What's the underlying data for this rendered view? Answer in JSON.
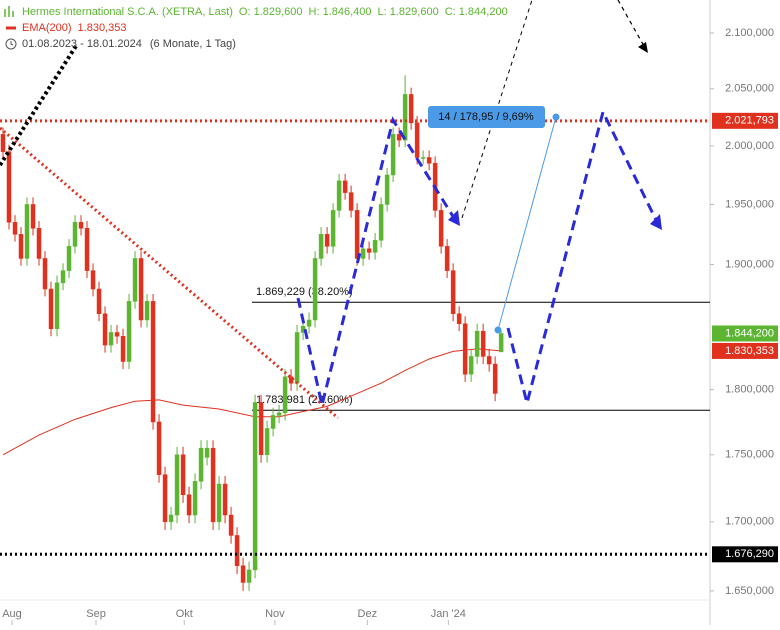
{
  "chart_data": {
    "type": "candlestick",
    "title": "Hermes International S.C.A. (XETRA, Last)",
    "quote": [
      "O: 1.829,600",
      "H: 1.846,400",
      "L: 1.829,600",
      "C: 1.844,200"
    ],
    "period": "01.08.2023 - 18.01.2024",
    "period_note": "(6 Monate, 1 Tag)",
    "log_scale": true,
    "ylim": [
      1643.5,
      2130.2
    ],
    "yticks": [
      {
        "value": 1650,
        "label": "1.650,000"
      },
      {
        "value": 1700,
        "label": "1.700,000"
      },
      {
        "value": 1750,
        "label": "1.750,000"
      },
      {
        "value": 1800,
        "label": "1.800,000"
      },
      {
        "value": 1900,
        "label": "1.900,000"
      },
      {
        "value": 1950,
        "label": "1.950,000"
      },
      {
        "value": 2000,
        "label": "2.000,000"
      },
      {
        "value": 2050,
        "label": "2.050,000"
      },
      {
        "value": 2100,
        "label": "2.100,000"
      }
    ],
    "xlim": [
      -0.5,
      117.8
    ],
    "xticks": [
      {
        "value": 1.5,
        "label": "Aug"
      },
      {
        "value": 15.5,
        "label": "Sep"
      },
      {
        "value": 30.2,
        "label": "Okt"
      },
      {
        "value": 45.3,
        "label": "Nov"
      },
      {
        "value": 60.7,
        "label": "Dez"
      },
      {
        "value": 74.2,
        "label": "Jan '24"
      }
    ],
    "up_color": "#5cb531",
    "down_color": "#e0301e",
    "open": [
      2010,
      1995,
      1935,
      1925,
      1905,
      1950,
      1930,
      1905,
      1880,
      1848,
      1885,
      1895,
      1915,
      1935,
      1930,
      1895,
      1880,
      1860,
      1835,
      1845,
      1842,
      1822,
      1870,
      1905,
      1855,
      1870,
      1775,
      1735,
      1700,
      1705,
      1750,
      1720,
      1705,
      1730,
      1748,
      1755,
      1700,
      1728,
      1705,
      1690,
      1668,
      1656,
      1665,
      1790,
      1750,
      1770,
      1780,
      1782,
      1810,
      1805,
      1845,
      1850,
      1855,
      1905,
      1925,
      1915,
      1945,
      1970,
      1960,
      1945,
      1905,
      1913,
      1910,
      1920,
      1950,
      1975,
      2010,
      2005,
      2045,
      2020,
      1990,
      1990,
      1985,
      1945,
      1915,
      1895,
      1860,
      1852,
      1812,
      1826,
      1846,
      1826,
      1820,
      1829.6
    ],
    "high": [
      2016,
      2001,
      1941,
      1931,
      1956,
      1956,
      1936,
      1911,
      1886,
      1891,
      1901,
      1921,
      1941,
      1941,
      1936,
      1901,
      1886,
      1866,
      1851,
      1851,
      1848,
      1876,
      1911,
      1911,
      1876,
      1876,
      1781,
      1741,
      1711,
      1756,
      1756,
      1726,
      1736,
      1761,
      1761,
      1761,
      1734,
      1734,
      1711,
      1696,
      1674,
      1671,
      1796,
      1796,
      1776,
      1786,
      1788,
      1816,
      1816,
      1851,
      1856,
      1861,
      1911,
      1931,
      1931,
      1951,
      1976,
      1976,
      1966,
      1951,
      1919,
      1919,
      1926,
      1956,
      1981,
      2016,
      2016,
      2062,
      2051,
      2026,
      1996,
      1996,
      1991,
      1951,
      1921,
      1901,
      1866,
      1858,
      1832,
      1852,
      1852,
      1832,
      1826,
      1846.4
    ],
    "low": [
      1989,
      1929,
      1919,
      1899,
      1899,
      1924,
      1899,
      1874,
      1842,
      1842,
      1879,
      1889,
      1909,
      1924,
      1889,
      1874,
      1854,
      1829,
      1829,
      1836,
      1816,
      1816,
      1864,
      1849,
      1849,
      1769,
      1729,
      1694,
      1694,
      1699,
      1714,
      1699,
      1699,
      1724,
      1742,
      1694,
      1694,
      1699,
      1684,
      1662,
      1650,
      1650,
      1659,
      1744,
      1744,
      1764,
      1774,
      1776,
      1799,
      1799,
      1839,
      1844,
      1849,
      1899,
      1909,
      1909,
      1939,
      1954,
      1939,
      1899,
      1899,
      1904,
      1904,
      1914,
      1944,
      1969,
      1999,
      1999,
      2014,
      1984,
      1984,
      1979,
      1939,
      1909,
      1889,
      1854,
      1846,
      1806,
      1806,
      1820,
      1820,
      1814,
      1791,
      1829.6
    ],
    "close": [
      1995,
      1935,
      1925,
      1905,
      1950,
      1930,
      1905,
      1880,
      1848,
      1885,
      1895,
      1915,
      1935,
      1930,
      1895,
      1880,
      1860,
      1835,
      1845,
      1842,
      1822,
      1870,
      1905,
      1855,
      1870,
      1775,
      1735,
      1700,
      1705,
      1750,
      1720,
      1705,
      1730,
      1755,
      1755,
      1700,
      1728,
      1705,
      1690,
      1668,
      1656,
      1665,
      1790,
      1750,
      1770,
      1780,
      1782,
      1810,
      1805,
      1845,
      1850,
      1855,
      1905,
      1925,
      1915,
      1945,
      1970,
      1960,
      1945,
      1905,
      1913,
      1910,
      1920,
      1950,
      1975,
      2010,
      2005,
      2045,
      2020,
      1990,
      1990,
      1985,
      1945,
      1915,
      1895,
      1860,
      1852,
      1812,
      1826,
      1846,
      1826,
      1820,
      1797,
      1844.2
    ],
    "last_price": {
      "value": 1844.2,
      "label": "1.844,200",
      "color": "#5cb531"
    },
    "ema": {
      "name": "EMA(200)",
      "color": "#e0301e",
      "last": {
        "value": 1830.353,
        "label": "1.830,353"
      },
      "x": [
        0,
        6,
        12,
        18,
        22,
        26,
        30,
        36,
        42,
        46,
        50,
        54,
        58,
        63,
        67,
        71,
        75,
        79,
        83
      ],
      "values": [
        1750,
        1765,
        1777,
        1786,
        1791,
        1792,
        1788,
        1785,
        1779,
        1779,
        1783,
        1787,
        1795,
        1805,
        1815,
        1824,
        1830,
        1832,
        1830.353
      ]
    },
    "levels": [
      {
        "value": 2021.793,
        "label": "2.021,793",
        "color": "#e0301e"
      },
      {
        "value": 1676.29,
        "label": "1.676,290",
        "color": "#000000"
      }
    ],
    "fib_levels": [
      {
        "value": 1869.229,
        "label": "1.869,229 (38.20%)"
      },
      {
        "value": 1783.981,
        "label": "1.783,981 (23.60%)"
      }
    ],
    "annotation": "14 / 178,95 / 9,69%"
  }
}
